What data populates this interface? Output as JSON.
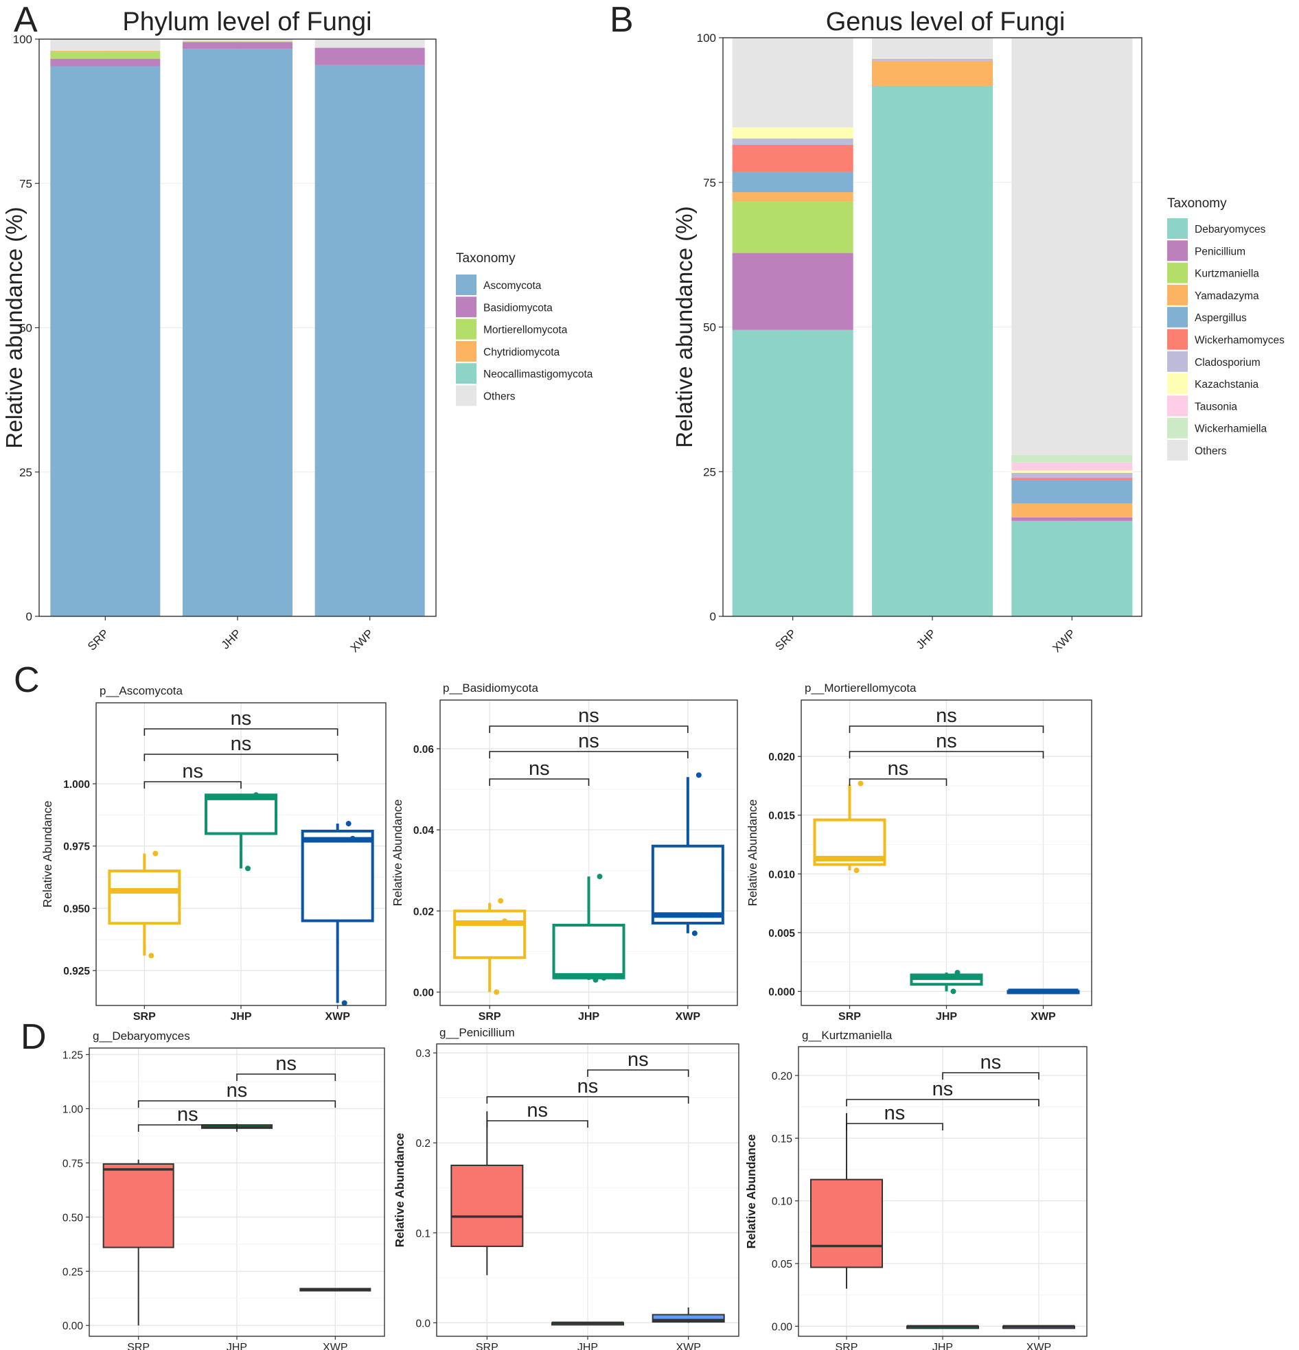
{
  "figure": {
    "panel_labels": [
      "A",
      "B",
      "C",
      "D"
    ]
  },
  "colors": {
    "Ascomycota": "#80b1d3",
    "Basidiomycota": "#bc80bd",
    "Mortierellomycota": "#b3de69",
    "Chytridiomycota": "#fdb462",
    "Neocallimastigomycota": "#8dd3c7",
    "Others": "#e5e5e5",
    "Debaryomyces": "#8dd3c7",
    "Penicillium": "#bc80bd",
    "Kurtzmaniella": "#b3de69",
    "Yamadazyma": "#fdb462",
    "Aspergillus": "#80b1d3",
    "Wickerhamomyces": "#fb8072",
    "Cladosporium": "#bebada",
    "Kazachstania": "#ffffb3",
    "Tausonia": "#fccde5",
    "Wickerhamiella": "#ccebc5",
    "SRP_C": "#f2bb1c",
    "JHP_C": "#0e9370",
    "XWP_C": "#0a55a6",
    "SRP_D": "#f8766d",
    "JHP_D": "#00ba38",
    "XWP_D": "#619cff"
  },
  "chart_data": [
    {
      "id": "A",
      "type": "bar",
      "stacked": true,
      "title": "Phylum level of Fungi",
      "ylabel": "Relative abundance (%)",
      "categories": [
        "SRP",
        "JHP",
        "XWP"
      ],
      "ylim": [
        0,
        100
      ],
      "yticks": [
        0,
        25,
        50,
        75,
        100
      ],
      "legend_title": "Taxonomy",
      "series": [
        {
          "name": "Ascomycota",
          "values": [
            95.3,
            98.3,
            95.5
          ]
        },
        {
          "name": "Basidiomycota",
          "values": [
            1.3,
            1.2,
            3.0
          ]
        },
        {
          "name": "Mortierellomycota",
          "values": [
            1.3,
            0.1,
            0.0
          ]
        },
        {
          "name": "Chytridiomycota",
          "values": [
            0.1,
            0.0,
            0.0
          ]
        },
        {
          "name": "Neocallimastigomycota",
          "values": [
            0.0,
            0.0,
            0.0
          ]
        },
        {
          "name": "Others",
          "values": [
            2.0,
            0.4,
            1.5
          ]
        }
      ]
    },
    {
      "id": "B",
      "type": "bar",
      "stacked": true,
      "title": "Genus level of Fungi",
      "ylabel": "Relative abundance (%)",
      "categories": [
        "SRP",
        "JHP",
        "XWP"
      ],
      "ylim": [
        0,
        100
      ],
      "yticks": [
        0,
        25,
        50,
        75,
        100
      ],
      "legend_title": "Taxonomy",
      "series": [
        {
          "name": "Debaryomyces",
          "values": [
            49.5,
            91.7,
            16.5
          ]
        },
        {
          "name": "Penicillium",
          "values": [
            13.3,
            0.0,
            0.6
          ]
        },
        {
          "name": "Kurtzmaniella",
          "values": [
            8.9,
            0.0,
            0.0
          ]
        },
        {
          "name": "Yamadazyma",
          "values": [
            1.6,
            4.3,
            2.4
          ]
        },
        {
          "name": "Aspergillus",
          "values": [
            3.5,
            0.0,
            4.0
          ]
        },
        {
          "name": "Wickerhamomyces",
          "values": [
            4.7,
            0.0,
            0.4
          ]
        },
        {
          "name": "Cladosporium",
          "values": [
            1.1,
            0.4,
            0.9
          ]
        },
        {
          "name": "Kazachstania",
          "values": [
            1.9,
            0.1,
            0.4
          ]
        },
        {
          "name": "Tausonia",
          "values": [
            0.0,
            0.0,
            1.4
          ]
        },
        {
          "name": "Wickerhamiella",
          "values": [
            0.0,
            0.0,
            1.3
          ]
        },
        {
          "name": "Others",
          "values": [
            15.5,
            3.5,
            72.1
          ]
        }
      ]
    },
    {
      "id": "C1",
      "type": "box",
      "title": "p__Ascomycota",
      "ylabel": "Relative Abundance",
      "categories": [
        "SRP",
        "JHP",
        "XWP"
      ],
      "ylim": [
        0.911,
        1.0325
      ],
      "yticks": [
        0.925,
        0.95,
        0.975,
        1.0
      ],
      "ytick_labels": [
        "0.925",
        "0.950",
        "0.975",
        "1.000"
      ],
      "boxes": [
        {
          "min": 0.931,
          "q1": 0.944,
          "median": 0.957,
          "q3": 0.965,
          "max": 0.972
        },
        {
          "min": 0.966,
          "q1": 0.98,
          "median": 0.9945,
          "q3": 0.9955,
          "max": 0.9955
        },
        {
          "min": 0.912,
          "q1": 0.945,
          "median": 0.9775,
          "q3": 0.981,
          "max": 0.984
        }
      ],
      "points": [
        {
          "group": 0,
          "values": [
            0.931,
            0.957,
            0.972
          ]
        },
        {
          "group": 1,
          "values": [
            0.966,
            0.9955
          ]
        },
        {
          "group": 2,
          "values": [
            0.912,
            0.978,
            0.984
          ]
        }
      ],
      "comparisons": [
        {
          "from": 0,
          "to": 1,
          "label": "ns"
        },
        {
          "from": 0,
          "to": 2,
          "label": "ns"
        },
        {
          "from": 0,
          "to": 2,
          "label": "ns"
        }
      ]
    },
    {
      "id": "C2",
      "type": "box",
      "title": "p__Basidiomycota",
      "ylabel": "Relative Abundance",
      "categories": [
        "SRP",
        "JHP",
        "XWP"
      ],
      "ylim": [
        -0.0033,
        0.072
      ],
      "yticks": [
        0,
        0.02,
        0.04,
        0.06
      ],
      "ytick_labels": [
        "0.00",
        "0.02",
        "0.04",
        "0.06"
      ],
      "boxes": [
        {
          "min": 0.0,
          "q1": 0.0085,
          "median": 0.017,
          "q3": 0.02,
          "max": 0.022
        },
        {
          "min": 0.003,
          "q1": 0.0035,
          "median": 0.004,
          "q3": 0.0165,
          "max": 0.0285
        },
        {
          "min": 0.0145,
          "q1": 0.017,
          "median": 0.019,
          "q3": 0.036,
          "max": 0.053
        }
      ],
      "points": [
        {
          "group": 0,
          "values": [
            0.0,
            0.0175,
            0.0225
          ]
        },
        {
          "group": 1,
          "values": [
            0.003,
            0.0035,
            0.0285
          ]
        },
        {
          "group": 2,
          "values": [
            0.0145,
            0.019,
            0.0535
          ]
        }
      ],
      "comparisons": [
        {
          "from": 0,
          "to": 1,
          "label": "ns"
        },
        {
          "from": 0,
          "to": 2,
          "label": "ns"
        },
        {
          "from": 0,
          "to": 2,
          "label": "ns"
        }
      ]
    },
    {
      "id": "C3",
      "type": "box",
      "title": "p__Mortierellomycota",
      "ylabel": "Relative Abundance",
      "categories": [
        "SRP",
        "JHP",
        "XWP"
      ],
      "ylim": [
        -0.0012,
        0.0248
      ],
      "yticks": [
        0,
        0.005,
        0.01,
        0.015,
        0.02
      ],
      "ytick_labels": [
        "0.000",
        "0.005",
        "0.010",
        "0.015",
        "0.020"
      ],
      "boxes": [
        {
          "min": 0.0103,
          "q1": 0.0108,
          "median": 0.0113,
          "q3": 0.0146,
          "max": 0.0176
        },
        {
          "min": 0.0,
          "q1": 0.0006,
          "median": 0.0012,
          "q3": 0.0014,
          "max": 0.0016
        },
        {
          "min": 0.0,
          "q1": 0.0,
          "median": 0.0,
          "q3": 0.0,
          "max": 0.0
        }
      ],
      "points": [
        {
          "group": 0,
          "values": [
            0.0103,
            0.0113,
            0.0177
          ]
        },
        {
          "group": 1,
          "values": [
            0.0,
            0.0012,
            0.0016
          ]
        },
        {
          "group": 2,
          "values": [
            0.0,
            0.0,
            0.0
          ]
        }
      ],
      "comparisons": [
        {
          "from": 0,
          "to": 1,
          "label": "ns"
        },
        {
          "from": 0,
          "to": 2,
          "label": "ns"
        },
        {
          "from": 0,
          "to": 2,
          "label": "ns"
        }
      ]
    },
    {
      "id": "D1",
      "type": "box",
      "title": "g__Debaryomyces",
      "ylabel": "",
      "categories": [
        "SRP",
        "JHP",
        "XWP"
      ],
      "ylim": [
        -0.05,
        1.28
      ],
      "yticks": [
        0,
        0.25,
        0.5,
        0.75,
        1.0,
        1.25
      ],
      "ytick_labels": [
        "0.00",
        "0.25",
        "0.50",
        "0.75",
        "1.00",
        "1.25"
      ],
      "boxes": [
        {
          "min": 0.0,
          "q1": 0.36,
          "median": 0.72,
          "q3": 0.745,
          "max": 0.765
        },
        {
          "min": 0.905,
          "q1": 0.91,
          "median": 0.915,
          "q3": 0.925,
          "max": 0.93
        },
        {
          "min": 0.16,
          "q1": 0.16,
          "median": 0.165,
          "q3": 0.17,
          "max": 0.17
        }
      ],
      "points": [],
      "comparisons": [
        {
          "from": 0,
          "to": 1,
          "label": "ns"
        },
        {
          "from": 0,
          "to": 2,
          "label": "ns"
        },
        {
          "from": 1,
          "to": 2,
          "label": "ns"
        }
      ]
    },
    {
      "id": "D2",
      "type": "box",
      "title": "g__Penicillium",
      "ylabel": "Relative Abundance",
      "categories": [
        "SRP",
        "JHP",
        "XWP"
      ],
      "ylim": [
        -0.015,
        0.31
      ],
      "yticks": [
        0,
        0.1,
        0.2,
        0.3
      ],
      "ytick_labels": [
        "0.0",
        "0.1",
        "0.2",
        "0.3"
      ],
      "boxes": [
        {
          "min": 0.053,
          "q1": 0.085,
          "median": 0.118,
          "q3": 0.175,
          "max": 0.235
        },
        {
          "min": 0.0,
          "q1": 0.0,
          "median": 0.0,
          "q3": 0.0,
          "max": 0.0
        },
        {
          "min": 0.0,
          "q1": 0.001,
          "median": 0.003,
          "q3": 0.009,
          "max": 0.017
        }
      ],
      "points": [],
      "comparisons": [
        {
          "from": 0,
          "to": 1,
          "label": "ns"
        },
        {
          "from": 0,
          "to": 2,
          "label": "ns"
        },
        {
          "from": 1,
          "to": 2,
          "label": "ns"
        }
      ]
    },
    {
      "id": "D3",
      "type": "box",
      "title": "g__Kurtzmaniella",
      "ylabel": "Relative Abundance",
      "categories": [
        "SRP",
        "JHP",
        "XWP"
      ],
      "ylim": [
        -0.008,
        0.223
      ],
      "yticks": [
        0,
        0.05,
        0.1,
        0.15,
        0.2
      ],
      "ytick_labels": [
        "0.00",
        "0.05",
        "0.10",
        "0.15",
        "0.20"
      ],
      "boxes": [
        {
          "min": 0.03,
          "q1": 0.047,
          "median": 0.064,
          "q3": 0.117,
          "max": 0.17
        },
        {
          "min": 0.0,
          "q1": 0.0,
          "median": 0.0,
          "q3": 0.0,
          "max": 0.0
        },
        {
          "min": 0.0,
          "q1": 0.0,
          "median": 0.0,
          "q3": 0.0,
          "max": 0.0
        }
      ],
      "points": [],
      "comparisons": [
        {
          "from": 0,
          "to": 1,
          "label": "ns"
        },
        {
          "from": 0,
          "to": 2,
          "label": "ns"
        },
        {
          "from": 1,
          "to": 2,
          "label": "ns"
        }
      ]
    }
  ]
}
